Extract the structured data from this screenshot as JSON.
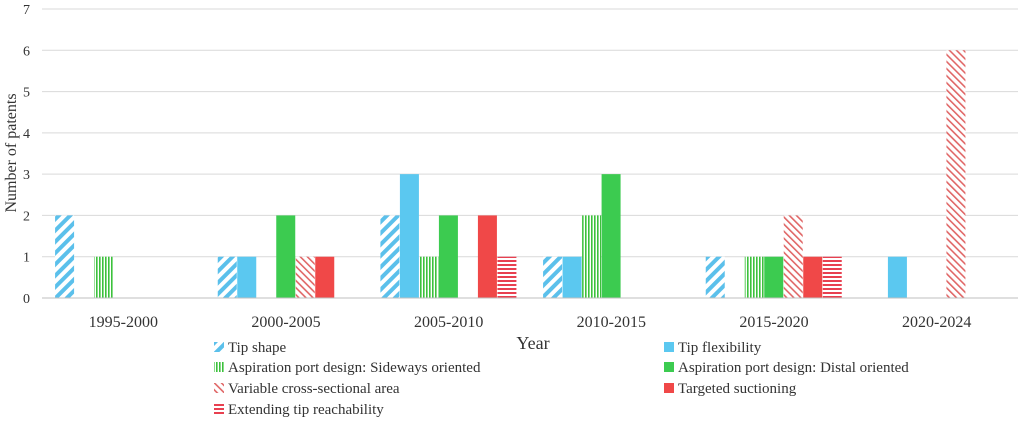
{
  "chart_data": {
    "type": "bar",
    "title": "",
    "xlabel": "Year",
    "ylabel": "Number of patents",
    "ylim": [
      0,
      7
    ],
    "yticks": [
      0,
      1,
      2,
      3,
      4,
      5,
      6,
      7
    ],
    "grid": true,
    "legend_position": "bottom",
    "categories": [
      "1995-2000",
      "2000-2005",
      "2005-2010",
      "2010-2015",
      "2015-2020",
      "2020-2024"
    ],
    "series": [
      {
        "name": "Tip shape",
        "color": "#5BC0EB",
        "pattern": "diagonal-stripes",
        "values": [
          2,
          1,
          2,
          1,
          1,
          0
        ]
      },
      {
        "name": "Tip flexibility",
        "color": "#5BC8F0",
        "pattern": "solid",
        "values": [
          0,
          1,
          3,
          1,
          0,
          1
        ]
      },
      {
        "name": "Aspiration port design: Sideways oriented",
        "color": "#3CC13C",
        "pattern": "vertical-stripes",
        "values": [
          1,
          0,
          1,
          2,
          1,
          0
        ]
      },
      {
        "name": "Aspiration port design: Distal oriented",
        "color": "#3CCB50",
        "pattern": "solid",
        "values": [
          0,
          2,
          2,
          3,
          1,
          0
        ]
      },
      {
        "name": "Variable cross-sectional area",
        "color": "#E06666",
        "pattern": "back-diagonal-stripes",
        "values": [
          0,
          1,
          0,
          0,
          2,
          6
        ]
      },
      {
        "name": "Targeted suctioning",
        "color": "#F04848",
        "pattern": "solid",
        "values": [
          0,
          1,
          2,
          0,
          1,
          0
        ]
      },
      {
        "name": "Extending tip reachability",
        "color": "#E84050",
        "pattern": "horizontal-stripes",
        "values": [
          0,
          0,
          1,
          0,
          1,
          0
        ]
      }
    ]
  }
}
